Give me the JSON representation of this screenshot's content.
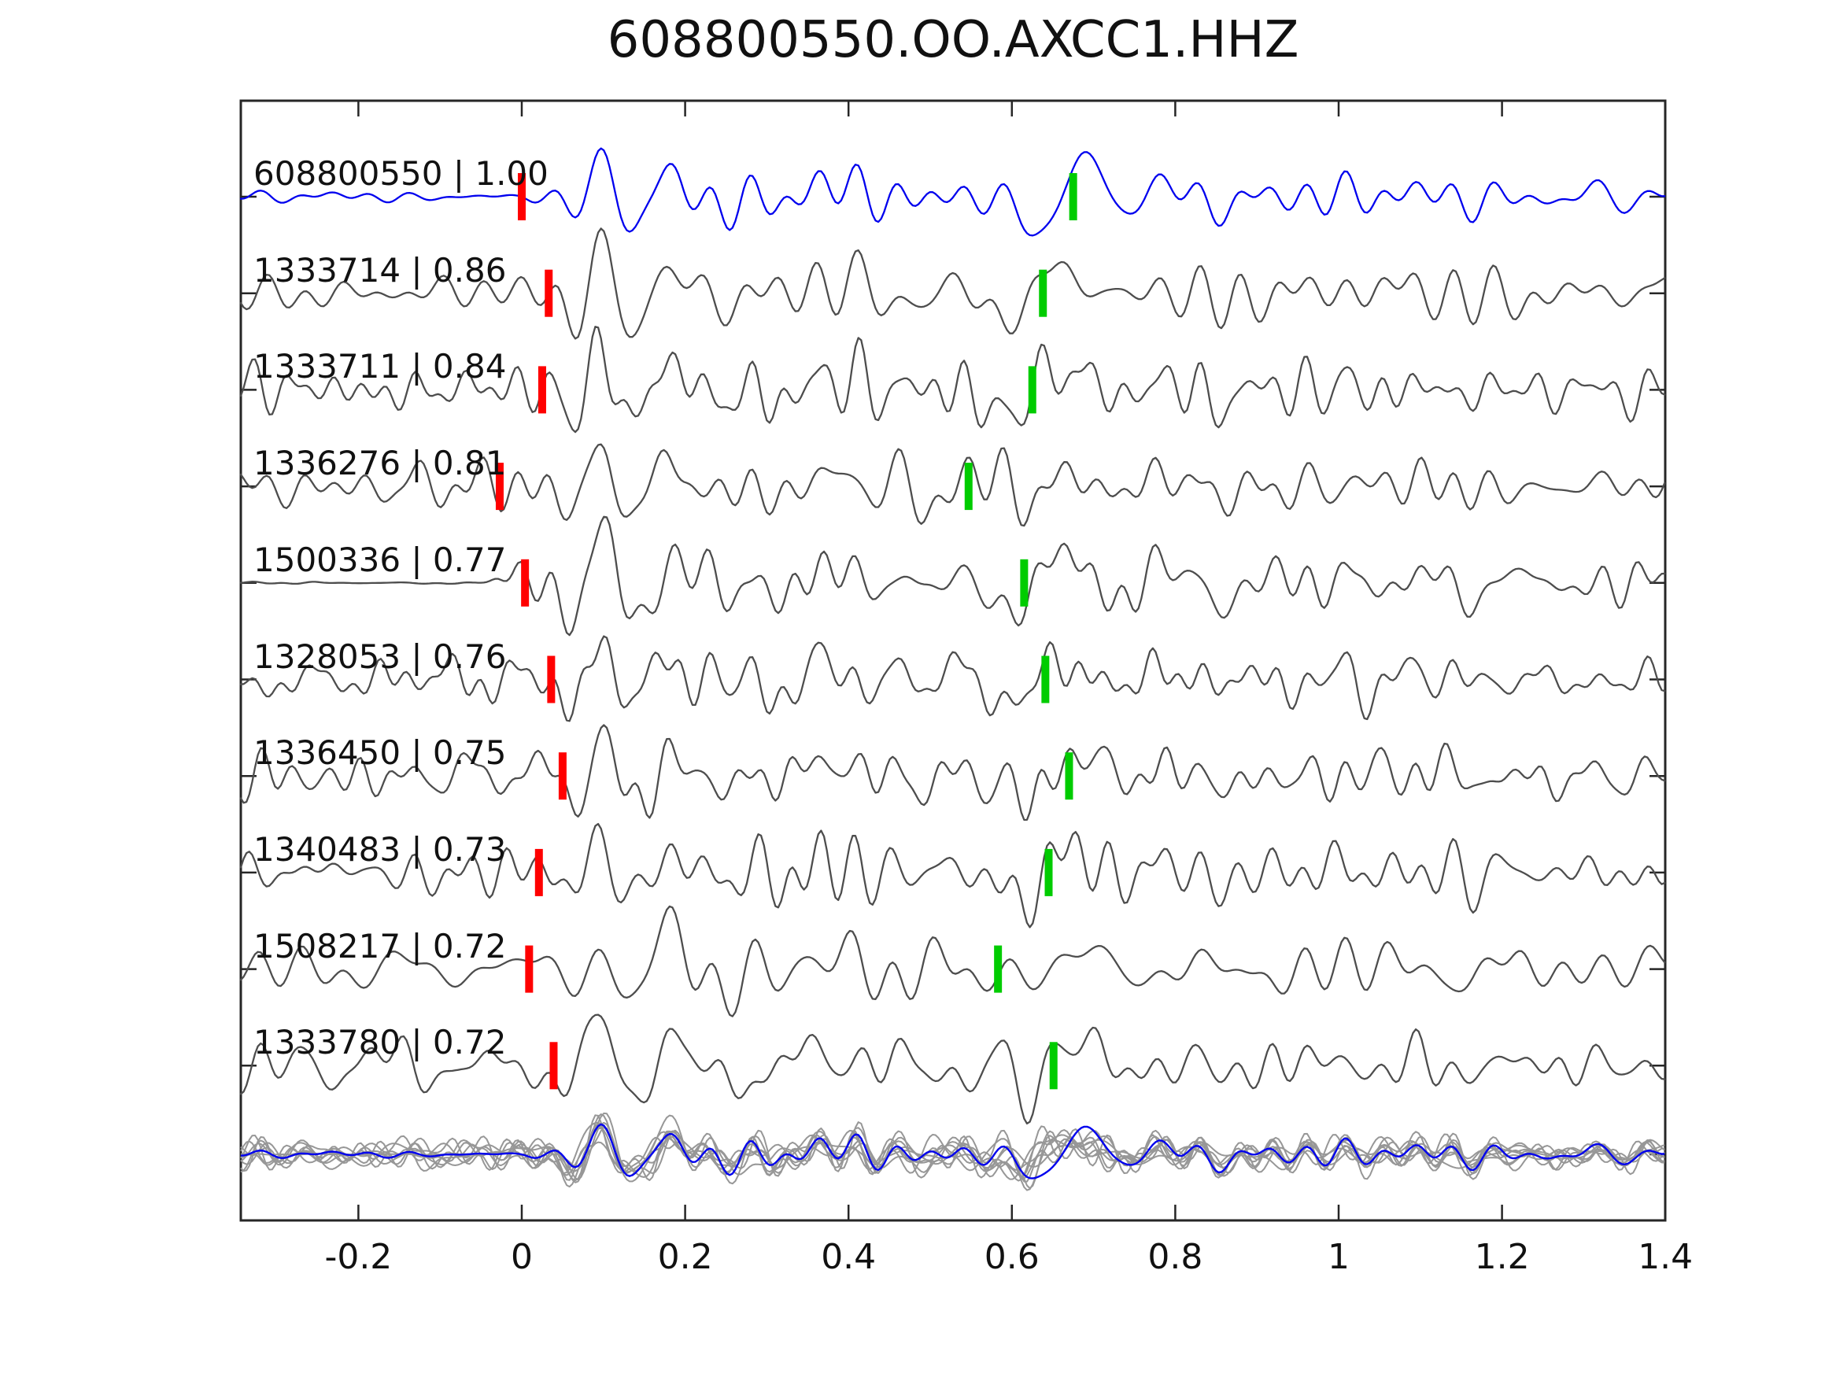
{
  "title": "608800550.OO.AXCC1.HHZ",
  "axes": {
    "x_tick_labels": [
      "-0.2",
      "0",
      "0.2",
      "0.4",
      "0.6",
      "0.8",
      "1",
      "1.2",
      "1.4"
    ],
    "x_tick_values": [
      -0.2,
      0,
      0.2,
      0.4,
      0.6,
      0.8,
      1.0,
      1.2,
      1.4
    ],
    "x_min": -0.344,
    "x_max": 1.4
  },
  "chart_data": {
    "type": "line",
    "title": "608800550.OO.AXCC1.HHZ",
    "xlabel": "",
    "ylabel": "",
    "x_range": [
      -0.344,
      1.4
    ],
    "x_ticks": [
      -0.2,
      0,
      0.2,
      0.4,
      0.6,
      0.8,
      1.0,
      1.2,
      1.4
    ],
    "grid": false,
    "legend": "none",
    "description": "Stacked seismic waveforms: template trace 608800550 (blue) and nine matched event traces (gray) labeled 'id | correlation'. Red bar = pick near t=0, green bar = secondary pick near t=0.55-0.68. Bottom row shows all traces overlaid (gray) with the template in blue.",
    "traces": [
      {
        "id": "608800550",
        "cc": 1.0,
        "label": "608800550 | 1.00",
        "red_pick": 0.0,
        "green_pick": 0.675,
        "is_template": true
      },
      {
        "id": "1333714",
        "cc": 0.86,
        "label": "1333714 | 0.86",
        "red_pick": 0.033,
        "green_pick": 0.638,
        "is_template": false
      },
      {
        "id": "1333711",
        "cc": 0.84,
        "label": "1333711 | 0.84",
        "red_pick": 0.025,
        "green_pick": 0.625,
        "is_template": false
      },
      {
        "id": "1336276",
        "cc": 0.81,
        "label": "1336276 | 0.81",
        "red_pick": -0.027,
        "green_pick": 0.547,
        "is_template": false
      },
      {
        "id": "1500336",
        "cc": 0.77,
        "label": "1500336 | 0.77",
        "red_pick": 0.004,
        "green_pick": 0.615,
        "is_template": false,
        "flat_until": -0.05
      },
      {
        "id": "1328053",
        "cc": 0.76,
        "label": "1328053 | 0.76",
        "red_pick": 0.036,
        "green_pick": 0.641,
        "is_template": false
      },
      {
        "id": "1336450",
        "cc": 0.75,
        "label": "1336450 | 0.75",
        "red_pick": 0.05,
        "green_pick": 0.67,
        "is_template": false
      },
      {
        "id": "1340483",
        "cc": 0.73,
        "label": "1340483 | 0.73",
        "red_pick": 0.021,
        "green_pick": 0.645,
        "is_template": false
      },
      {
        "id": "1508217",
        "cc": 0.72,
        "label": "1508217 | 0.72",
        "red_pick": 0.009,
        "green_pick": 0.583,
        "is_template": false,
        "freq_scale": 0.6
      },
      {
        "id": "1333780",
        "cc": 0.72,
        "label": "1333780 | 0.72",
        "red_pick": 0.039,
        "green_pick": 0.651,
        "is_template": false
      }
    ],
    "overlay_row": {
      "contains": "all 10 traces overlaid at common baseline",
      "template_on_top": true
    }
  },
  "style": {
    "template_color": "#0000ee",
    "trace_color": "#4d4d4d",
    "overlay_color": "#979797",
    "red_pick_color": "#ff0000",
    "green_pick_color": "#00cc00",
    "axis_color": "#262626",
    "text_color": "#111111",
    "background": "#ffffff"
  }
}
